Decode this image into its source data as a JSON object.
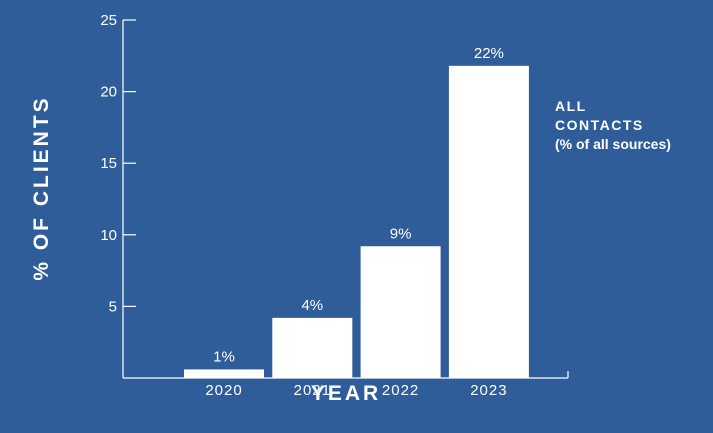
{
  "chart_data": {
    "type": "bar",
    "categories": [
      "2020",
      "2021",
      "2022",
      "2023"
    ],
    "values": [
      0.6,
      4.2,
      9.2,
      21.8
    ],
    "data_labels": [
      "1%",
      "4%",
      "9%",
      "22%"
    ],
    "title": "",
    "xlabel": "YEAR",
    "ylabel": "% OF CLIENTS",
    "ylim": [
      0,
      25
    ],
    "yticks": [
      "5",
      "10",
      "15",
      "20",
      "25"
    ],
    "grid": false,
    "legend": {
      "position": "right",
      "line1": "ALL",
      "line2": "CONTACTS",
      "line3": "(% of all sources)"
    },
    "colors": {
      "background": "#2f5d99",
      "bar": "#ffffff",
      "axis": "#ffffff",
      "text": "#ffffff"
    }
  }
}
